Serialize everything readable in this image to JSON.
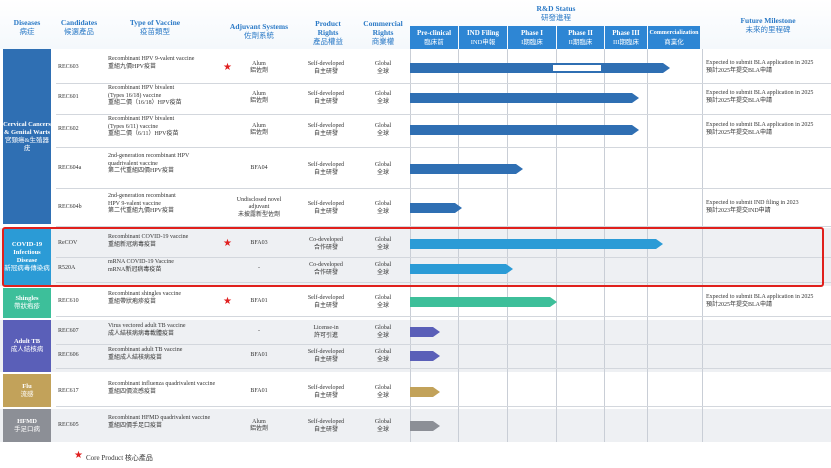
{
  "header": {
    "diseases": {
      "en": "Diseases",
      "zh": "病症"
    },
    "candidates": {
      "en": "Candidates",
      "zh": "候選產品"
    },
    "type": {
      "en": "Type of Vaccine",
      "zh": "疫苗類型"
    },
    "adjuvant": {
      "en": "Adjuvant Systems",
      "zh": "佐劑系統"
    },
    "product_rights": {
      "en": "Product\nRights",
      "zh": "產品權益"
    },
    "commercial_rights": {
      "en": "Commercial\nRights",
      "zh": "商業權"
    },
    "rd_status": {
      "en": "R&D Status",
      "zh": "研發進程"
    },
    "future": {
      "en": "Future Milestone",
      "zh": "未來的里程碑"
    },
    "stages": [
      {
        "en": "Pre-clinical",
        "zh": "臨床前"
      },
      {
        "en": "IND Filing",
        "zh": "IND申報"
      },
      {
        "en": "Phase I",
        "zh": "I期臨床"
      },
      {
        "en": "Phase II",
        "zh": "II期臨床"
      },
      {
        "en": "Phase III",
        "zh": "III期臨床"
      },
      {
        "en": "Commercialization",
        "zh": "商業化"
      }
    ]
  },
  "groups": [
    {
      "en": "Cervical Cancers & Genital Warts",
      "zh": "宮頸癌&生殖器疣",
      "color": "#2f6fb3"
    },
    {
      "en": "COVID-19 Infectious Disease",
      "zh": "新冠病毒傳染病",
      "color": "#2b9bd6"
    },
    {
      "en": "Shingles",
      "zh": "帶狀疱疹",
      "color": "#3dbf9a"
    },
    {
      "en": "Adult TB",
      "zh": "成人結核病",
      "color": "#5a5fb8"
    },
    {
      "en": "Flu",
      "zh": "流感",
      "color": "#c2a25a"
    },
    {
      "en": "HFMD",
      "zh": "手足口病",
      "color": "#8c8f96"
    }
  ],
  "rows": [
    {
      "candidate": "REC603",
      "vaccine_en": "Recombinant HPV 9-valent vaccine",
      "vaccine_zh": "重組九價HPV疫苗",
      "core": true,
      "adjuvant": "Alum\n鋁佐劑",
      "product_rights": "Self-developed\n自主研發",
      "commercial_rights": "Global\n全球",
      "future": "Expected to submit BLA application in 2025\n預計2025年提交BLA申請",
      "progress_stage": 5.35,
      "bar_color": "#2f6fb3"
    },
    {
      "candidate": "REC601",
      "vaccine_en": "Recombinant HPV bivalent\n(Types 16/18) vaccine",
      "vaccine_zh": "重組二價（16/18）HPV疫苗",
      "core": false,
      "adjuvant": "Alum\n鋁佐劑",
      "product_rights": "Self-developed\n自主研發",
      "commercial_rights": "Global\n全球",
      "future": "Expected to submit BLA application in 2025\n預計2025年提交BLA申請",
      "progress_stage": 4.7,
      "bar_color": "#2f6fb3"
    },
    {
      "candidate": "REC602",
      "vaccine_en": "Recombinant HPV bivalent\n(Types 6/11) vaccine",
      "vaccine_zh": "重組二價（6/11）HPV疫苗",
      "core": false,
      "adjuvant": "Alum\n鋁佐劑",
      "product_rights": "Self-developed\n自主研發",
      "commercial_rights": "Global\n全球",
      "future": "Expected to submit BLA application in 2025\n預計2025年提交BLA申請",
      "progress_stage": 4.7,
      "bar_color": "#2f6fb3"
    },
    {
      "candidate": "REC604a",
      "vaccine_en": "2nd-generation recombinant HPV\nquadrivalent vaccine",
      "vaccine_zh": "第二代重組四價HPV疫苗",
      "core": false,
      "adjuvant": "BFA04",
      "product_rights": "Self-developed\n自主研發",
      "commercial_rights": "Global\n全球",
      "future": "",
      "progress_stage": 2.3,
      "bar_color": "#2f6fb3"
    },
    {
      "candidate": "REC604b",
      "vaccine_en": "2nd-generation recombinant\nHPV 9-valent vaccine",
      "vaccine_zh": "第二代重組九價HPV疫苗",
      "core": false,
      "adjuvant": "Undisclosed novel\nadjuvant\n未披露新型佐劑",
      "product_rights": "Self-developed\n自主研發",
      "commercial_rights": "Global\n全球",
      "future": "Expected to submit IND filing in 2023\n預計2023年提交IND申請",
      "progress_stage": 1.05,
      "bar_color": "#2f6fb3"
    },
    {
      "candidate": "ReCOV",
      "vaccine_en": "Recombinant COVID-19 vaccine",
      "vaccine_zh": "重組新冠病毒疫苗",
      "core": true,
      "adjuvant": "BFA03",
      "product_rights": "Co-developed\n合作研發",
      "commercial_rights": "Global\n全球",
      "future": "",
      "progress_stage": 5.2,
      "bar_color": "#2b9bd6"
    },
    {
      "candidate": "R520A",
      "vaccine_en": "mRNA COVID-19 Vaccine",
      "vaccine_zh": "mRNA新冠病毒疫苗",
      "core": false,
      "adjuvant": "-",
      "product_rights": "Co-developed\n合作研發",
      "commercial_rights": "Global\n全球",
      "future": "",
      "progress_stage": 2.1,
      "bar_color": "#2b9bd6"
    },
    {
      "candidate": "REC610",
      "vaccine_en": "Recombinant shingles vaccine",
      "vaccine_zh": "重組帶狀疱疹疫苗",
      "core": true,
      "adjuvant": "BFA01",
      "product_rights": "Self-developed\n自主研發",
      "commercial_rights": "Global\n全球",
      "future": "Expected to submit BLA application in 2025\n預計2025年提交BLA申請",
      "progress_stage": 3.0,
      "bar_color": "#3dbf9a"
    },
    {
      "candidate": "REC607",
      "vaccine_en": "Virus vectored adult TB vaccine",
      "vaccine_zh": "成人結核病病毒載體疫苗",
      "core": false,
      "adjuvant": "-",
      "product_rights": "License-in\n許可引進",
      "commercial_rights": "Global\n全球",
      "future": "",
      "progress_stage": 0.6,
      "bar_color": "#5a5fb8"
    },
    {
      "candidate": "REC606",
      "vaccine_en": "Recombinant adult TB vaccine",
      "vaccine_zh": "重組成人結核病疫苗",
      "core": false,
      "adjuvant": "BFA01",
      "product_rights": "Self-developed\n自主研發",
      "commercial_rights": "Global\n全球",
      "future": "",
      "progress_stage": 0.6,
      "bar_color": "#5a5fb8"
    },
    {
      "candidate": "REC617",
      "vaccine_en": "Recombinant influenza quadrivalent vaccine",
      "vaccine_zh": "重組四價流感疫苗",
      "core": false,
      "adjuvant": "BFA01",
      "product_rights": "Self-developed\n自主研發",
      "commercial_rights": "Global\n全球",
      "future": "",
      "progress_stage": 0.6,
      "bar_color": "#c2a25a"
    },
    {
      "candidate": "REC605",
      "vaccine_en": "Recombinant HFMD quadrivalent vaccine",
      "vaccine_zh": "重組四價手足口疫苗",
      "core": false,
      "adjuvant": "Alum\n鋁佐劑",
      "product_rights": "Self-developed\n自主研發",
      "commercial_rights": "Global\n全球",
      "future": "",
      "progress_stage": 0.6,
      "bar_color": "#8c8f96"
    }
  ],
  "footnote": "Core Product 核心產品"
}
